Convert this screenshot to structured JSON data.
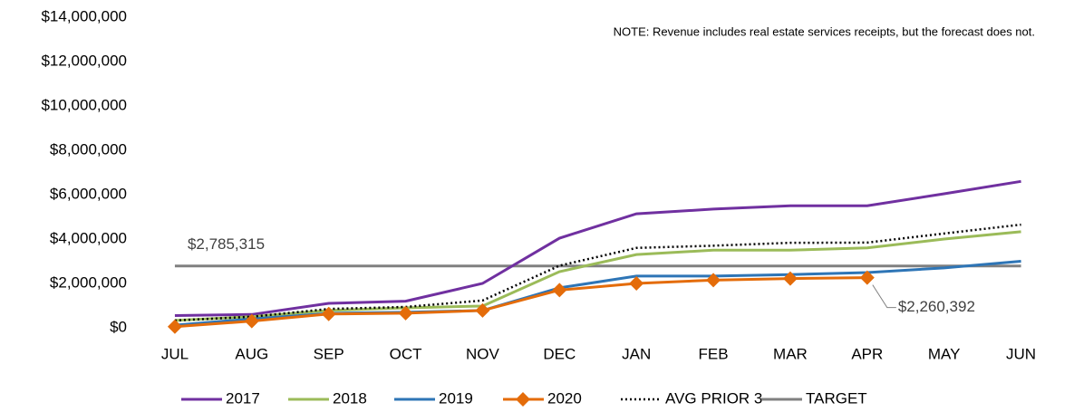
{
  "chart_data": {
    "type": "line",
    "note": "NOTE:  Revenue includes real estate services receipts, but the forecast does not.",
    "categories": [
      "JUL",
      "AUG",
      "SEP",
      "OCT",
      "NOV",
      "DEC",
      "JAN",
      "FEB",
      "MAR",
      "APR",
      "MAY",
      "JUN"
    ],
    "series": [
      {
        "name": "2017",
        "color": "#7030a0",
        "values": [
          550000,
          600000,
          1100000,
          1200000,
          2000000,
          4040000,
          5140000,
          5350000,
          5500000,
          5500000,
          6040000,
          6600000
        ]
      },
      {
        "name": "2018",
        "color": "#9bbb59",
        "values": [
          330000,
          500000,
          780000,
          900000,
          980000,
          2530000,
          3300000,
          3500000,
          3500000,
          3600000,
          4000000,
          4330000
        ]
      },
      {
        "name": "2019",
        "color": "#2e75b6",
        "values": [
          120000,
          400000,
          650000,
          700000,
          780000,
          1800000,
          2330000,
          2330000,
          2400000,
          2490000,
          2700000,
          3000000
        ]
      },
      {
        "name": "2020",
        "color": "#e46c0a",
        "marker": "diamond",
        "values": [
          50000,
          300000,
          620000,
          660000,
          780000,
          1700000,
          2000000,
          2150000,
          2220000,
          2260392,
          null,
          null
        ]
      },
      {
        "name": "AVG PRIOR 3",
        "color": "#000000",
        "dash": "dotted",
        "values": [
          330000,
          500000,
          850000,
          940000,
          1230000,
          2800000,
          3600000,
          3700000,
          3830000,
          3840000,
          4250000,
          4650000
        ]
      },
      {
        "name": "TARGET",
        "color": "#808080",
        "values": [
          2785315,
          2785315,
          2785315,
          2785315,
          2785315,
          2785315,
          2785315,
          2785315,
          2785315,
          2785315,
          2785315,
          2785315
        ]
      }
    ],
    "annotations": [
      {
        "text": "$2,785,315",
        "series": 5,
        "index": 0,
        "value": 2785315
      },
      {
        "text": "$2,260,392",
        "series": 3,
        "index": 9,
        "value": 2260392
      }
    ],
    "ylim": [
      0,
      14000000
    ],
    "yticks": [
      {
        "value": 0,
        "label": "$0"
      },
      {
        "value": 2000000,
        "label": "$2,000,000"
      },
      {
        "value": 4000000,
        "label": "$4,000,000"
      },
      {
        "value": 6000000,
        "label": "$6,000,000"
      },
      {
        "value": 8000000,
        "label": "$8,000,000"
      },
      {
        "value": 10000000,
        "label": "$10,000,000"
      },
      {
        "value": 12000000,
        "label": "$12,000,000"
      },
      {
        "value": 14000000,
        "label": "$14,000,000"
      }
    ],
    "grid": false,
    "legend": "bottom"
  }
}
